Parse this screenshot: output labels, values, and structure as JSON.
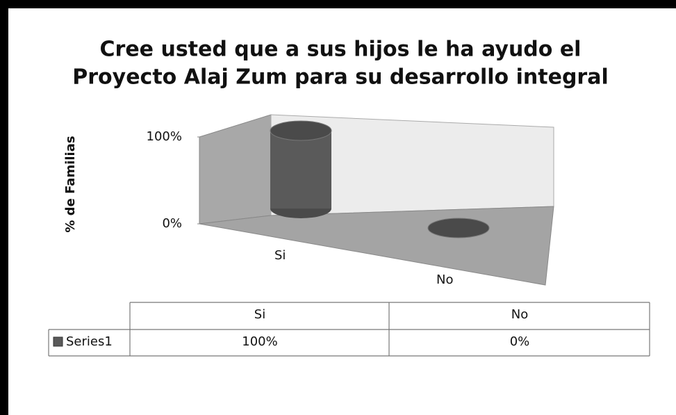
{
  "chart_data": {
    "type": "bar3d",
    "title": "Cree usted que a sus hijos le ha ayudo el",
    "title_line2": "Proyecto Alaj Zum para su desarrollo integral",
    "y_label": "% de Familias",
    "categories": [
      "Si",
      "No"
    ],
    "series": [
      {
        "name": "Series1",
        "color": "#5a5a5a",
        "values": [
          100,
          0
        ],
        "value_labels": [
          "100%",
          "0%"
        ]
      }
    ],
    "ylim": [
      0,
      100
    ],
    "yticks": [
      {
        "value": 0,
        "label": "0%"
      },
      {
        "value": 100,
        "label": "100%"
      }
    ]
  }
}
